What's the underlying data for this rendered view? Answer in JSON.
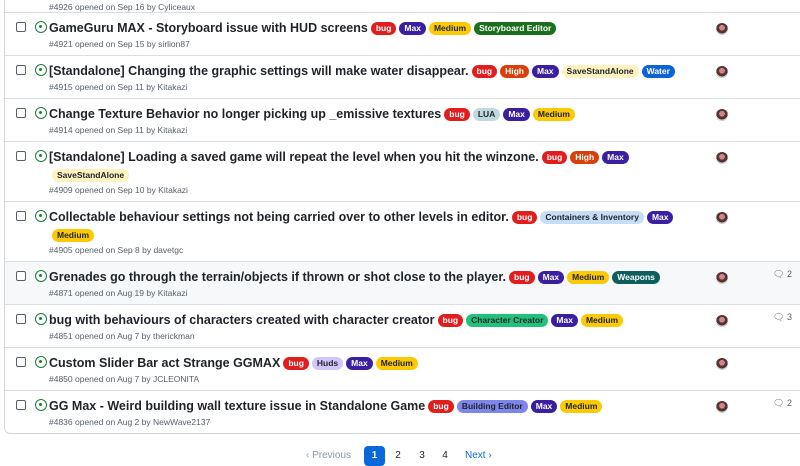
{
  "partial_row": {
    "meta": "#4926 opened on Sep 16 by Cyliceaux"
  },
  "label_colors": {
    "bug": [
      "#e11d1d",
      "#fff"
    ],
    "Max": [
      "#3b1fa0",
      "#fff"
    ],
    "Medium": [
      "#fbca04",
      "#1f2328"
    ],
    "Storyboard Editor": [
      "#1b6e1b",
      "#fff"
    ],
    "High": [
      "#d93f0b",
      "#fff"
    ],
    "SaveStandAlone": [
      "#fef2c0",
      "#1f2328"
    ],
    "Water": [
      "#0b63d6",
      "#fff"
    ],
    "LUA": [
      "#bfdadc",
      "#1f2328"
    ],
    "Containers & Inventory": [
      "#c5def5",
      "#1f2328"
    ],
    "Weapons": [
      "#0e5e5e",
      "#fff"
    ],
    "Character Creator": [
      "#1fc27a",
      "#1f2328"
    ],
    "Huds": [
      "#d4c5f9",
      "#1f2328"
    ],
    "Building Editor": [
      "#7f86ea",
      "#1f2328"
    ]
  },
  "issues": [
    {
      "title": "GameGuru MAX - Storyboard issue with HUD screens",
      "labels": [
        "bug",
        "Max",
        "Medium",
        "Storyboard Editor"
      ],
      "meta": "#4921 opened on Sep 15 by sirlion87",
      "comments": ""
    },
    {
      "title": "[Standalone] Changing the graphic settings will make water disappear.",
      "labels": [
        "bug",
        "High",
        "Max",
        "SaveStandAlone",
        "Water"
      ],
      "meta": "#4915 opened on Sep 11 by Kitakazi",
      "comments": ""
    },
    {
      "title": "Change Texture Behavior no longer picking up _emissive textures",
      "labels": [
        "bug",
        "LUA",
        "Max",
        "Medium"
      ],
      "meta": "#4914 opened on Sep 11 by Kitakazi",
      "comments": ""
    },
    {
      "title": "[Standalone] Loading a saved game will repeat the level when you hit the winzone.",
      "labels": [
        "bug",
        "High",
        "Max",
        "SaveStandAlone"
      ],
      "meta": "#4909 opened on Sep 10 by Kitakazi",
      "comments": ""
    },
    {
      "title": "Collectable behaviour settings not being carried over to other levels in editor.",
      "labels": [
        "bug",
        "Containers & Inventory",
        "Max",
        "Medium"
      ],
      "meta": "#4905 opened on Sep 8 by davetgc",
      "comments": ""
    },
    {
      "title": "Grenades go through the terrain/objects if thrown or shot close to the player.",
      "labels": [
        "bug",
        "Max",
        "Medium",
        "Weapons"
      ],
      "meta": "#4871 opened on Aug 19 by Kitakazi",
      "comments": "2"
    },
    {
      "title": "bug with behaviours of characters created with character creator",
      "labels": [
        "bug",
        "Character Creator",
        "Max",
        "Medium"
      ],
      "meta": "#4851 opened on Aug 7 by therickman",
      "comments": "3"
    },
    {
      "title": "Custom Slider Bar act Strange GGMAX",
      "labels": [
        "bug",
        "Huds",
        "Max",
        "Medium"
      ],
      "meta": "#4850 opened on Aug 7 by JCLEONITA",
      "comments": ""
    },
    {
      "title": "GG Max - Weird building wall texture issue in Standalone Game",
      "labels": [
        "bug",
        "Building Editor",
        "Max",
        "Medium"
      ],
      "meta": "#4836 opened on Aug 2 by NewWave2137",
      "comments": "2"
    }
  ],
  "pagination": {
    "previous": "‹ Previous",
    "pages": [
      "1",
      "2",
      "3",
      "4"
    ],
    "current": "1",
    "next": "Next ›"
  }
}
